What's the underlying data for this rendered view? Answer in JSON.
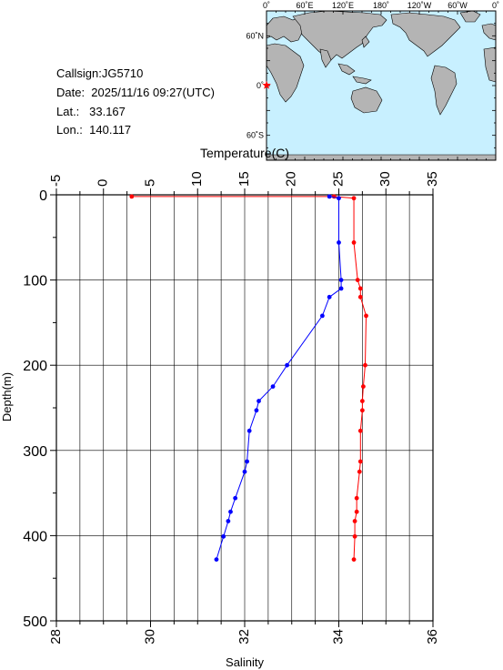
{
  "station": {
    "callsign": "Callsign:JG5710",
    "date": "Date:  2025/11/16 09:27(UTC)",
    "lat": "Lat.:   33.167",
    "lon": "Lon.:  140.117"
  },
  "map": {
    "top_labels": [
      "0˚",
      "60˚E",
      "120˚E",
      "180˚",
      "120˚W",
      "60˚W",
      "0˚"
    ],
    "left_labels": [
      "60˚N",
      "0˚",
      "60˚S"
    ],
    "colors": {
      "ocean": "#c8f0ff",
      "land": "#b4b4b4",
      "marker": "#ff0000"
    },
    "marker_icon": "star-icon"
  },
  "chart_data": {
    "type": "line",
    "temperature_axis": {
      "label": "Temperature(C)",
      "range": [
        -5,
        35
      ],
      "ticks": [
        "-5",
        "0",
        "5",
        "10",
        "15",
        "20",
        "25",
        "30",
        "35"
      ]
    },
    "salinity_axis": {
      "label": "Salinity",
      "range": [
        28,
        36
      ],
      "ticks": [
        "28",
        "30",
        "32",
        "34",
        "36"
      ]
    },
    "depth_axis": {
      "label": "Depth(m)",
      "range": [
        0,
        500
      ],
      "ticks": [
        "0",
        "100",
        "200",
        "300",
        "400",
        "500"
      ],
      "reversed": true
    },
    "grid": true,
    "series": [
      {
        "name": "Temperature",
        "color": "#ff0000",
        "axis": "temperature",
        "points": [
          [
            3,
            2
          ],
          [
            24.5,
            2
          ],
          [
            26.6,
            4
          ],
          [
            26.6,
            56
          ],
          [
            27.0,
            100
          ],
          [
            27.3,
            110
          ],
          [
            27.3,
            120
          ],
          [
            27.9,
            142
          ],
          [
            27.8,
            200
          ],
          [
            27.6,
            225
          ],
          [
            27.5,
            242
          ],
          [
            27.5,
            253
          ],
          [
            27.3,
            277
          ],
          [
            27.3,
            313
          ],
          [
            27.2,
            325
          ],
          [
            26.9,
            356
          ],
          [
            26.9,
            372
          ],
          [
            26.7,
            383
          ],
          [
            26.7,
            401
          ],
          [
            26.6,
            428
          ]
        ]
      },
      {
        "name": "Salinity",
        "color": "#0000ff",
        "axis": "salinity",
        "points": [
          [
            33.8,
            2
          ],
          [
            34.0,
            4
          ],
          [
            34.0,
            56
          ],
          [
            34.05,
            100
          ],
          [
            34.05,
            110
          ],
          [
            33.8,
            120
          ],
          [
            33.65,
            142
          ],
          [
            32.9,
            200
          ],
          [
            32.6,
            225
          ],
          [
            32.3,
            242
          ],
          [
            32.25,
            253
          ],
          [
            32.1,
            277
          ],
          [
            32.05,
            313
          ],
          [
            32.0,
            325
          ],
          [
            31.8,
            356
          ],
          [
            31.7,
            372
          ],
          [
            31.65,
            383
          ],
          [
            31.55,
            401
          ],
          [
            31.4,
            428
          ]
        ]
      }
    ]
  }
}
